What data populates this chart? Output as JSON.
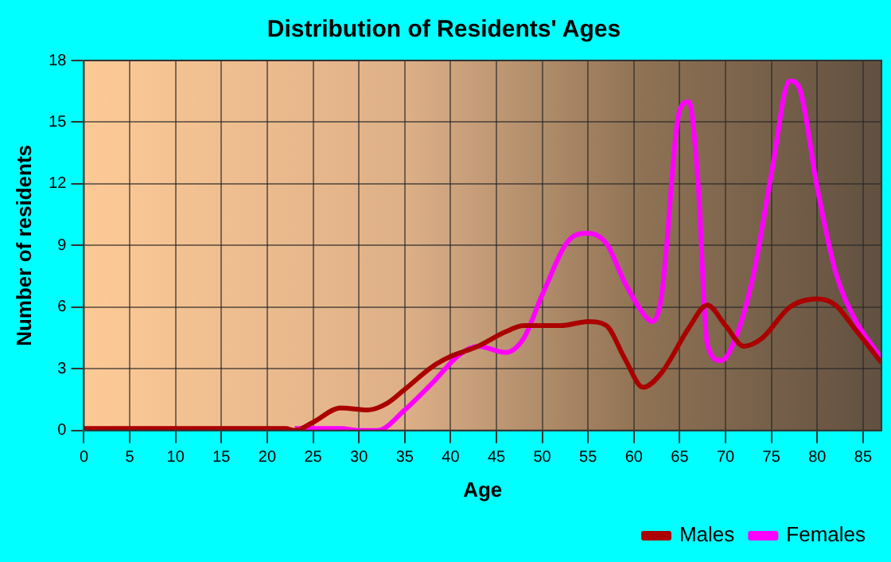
{
  "chart_data": {
    "type": "line",
    "title": "Distribution of Residents' Ages",
    "xlabel": "Age",
    "ylabel": "Number of residents",
    "xlim": [
      0,
      87
    ],
    "xticks": [
      0,
      5,
      10,
      15,
      20,
      25,
      30,
      35,
      40,
      45,
      50,
      55,
      60,
      65,
      70,
      75,
      80,
      85
    ],
    "ylim": [
      0,
      18
    ],
    "yticks": [
      0,
      3,
      6,
      9,
      12,
      15,
      18
    ],
    "grid": true,
    "legend": "bottom right",
    "marker": "none",
    "line_style": "solid",
    "series": [
      {
        "name": "Males",
        "color": "#aa0000",
        "x": [
          0,
          5,
          10,
          15,
          20,
          22,
          23,
          25,
          28,
          31,
          33,
          35,
          38,
          40,
          43,
          46,
          48,
          52,
          55,
          57,
          59,
          61,
          63,
          66,
          68,
          70,
          72,
          74,
          77,
          80,
          82,
          84,
          87
        ],
        "values": [
          0.1,
          0.1,
          0.1,
          0.1,
          0.1,
          0.1,
          0,
          0.4,
          1.1,
          1,
          1.3,
          2,
          3.1,
          3.6,
          4.1,
          4.8,
          5.1,
          5.1,
          5.3,
          5.1,
          3.5,
          2.1,
          2.8,
          5,
          6.1,
          5.1,
          4.1,
          4.5,
          6,
          6.4,
          6.1,
          5,
          3.3
        ]
      },
      {
        "name": "Females",
        "color": "#ff00ff",
        "x": [
          23,
          28,
          30,
          32,
          35,
          38,
          41,
          43,
          46,
          48,
          50,
          53,
          55,
          57,
          59,
          61,
          62,
          63,
          65,
          66,
          67,
          68,
          69.5,
          71,
          73,
          75,
          77,
          78,
          80,
          82,
          84,
          87
        ],
        "values": [
          0.1,
          0.1,
          0,
          0,
          1,
          2.3,
          3.7,
          4.1,
          3.8,
          4.5,
          6.6,
          9.3,
          9.6,
          9.1,
          7.2,
          5.7,
          5.3,
          6.5,
          15.6,
          16,
          12,
          4.2,
          3.4,
          4.4,
          7.5,
          12.5,
          17,
          16.7,
          11.8,
          7.7,
          5.5,
          3.5
        ]
      }
    ]
  }
}
